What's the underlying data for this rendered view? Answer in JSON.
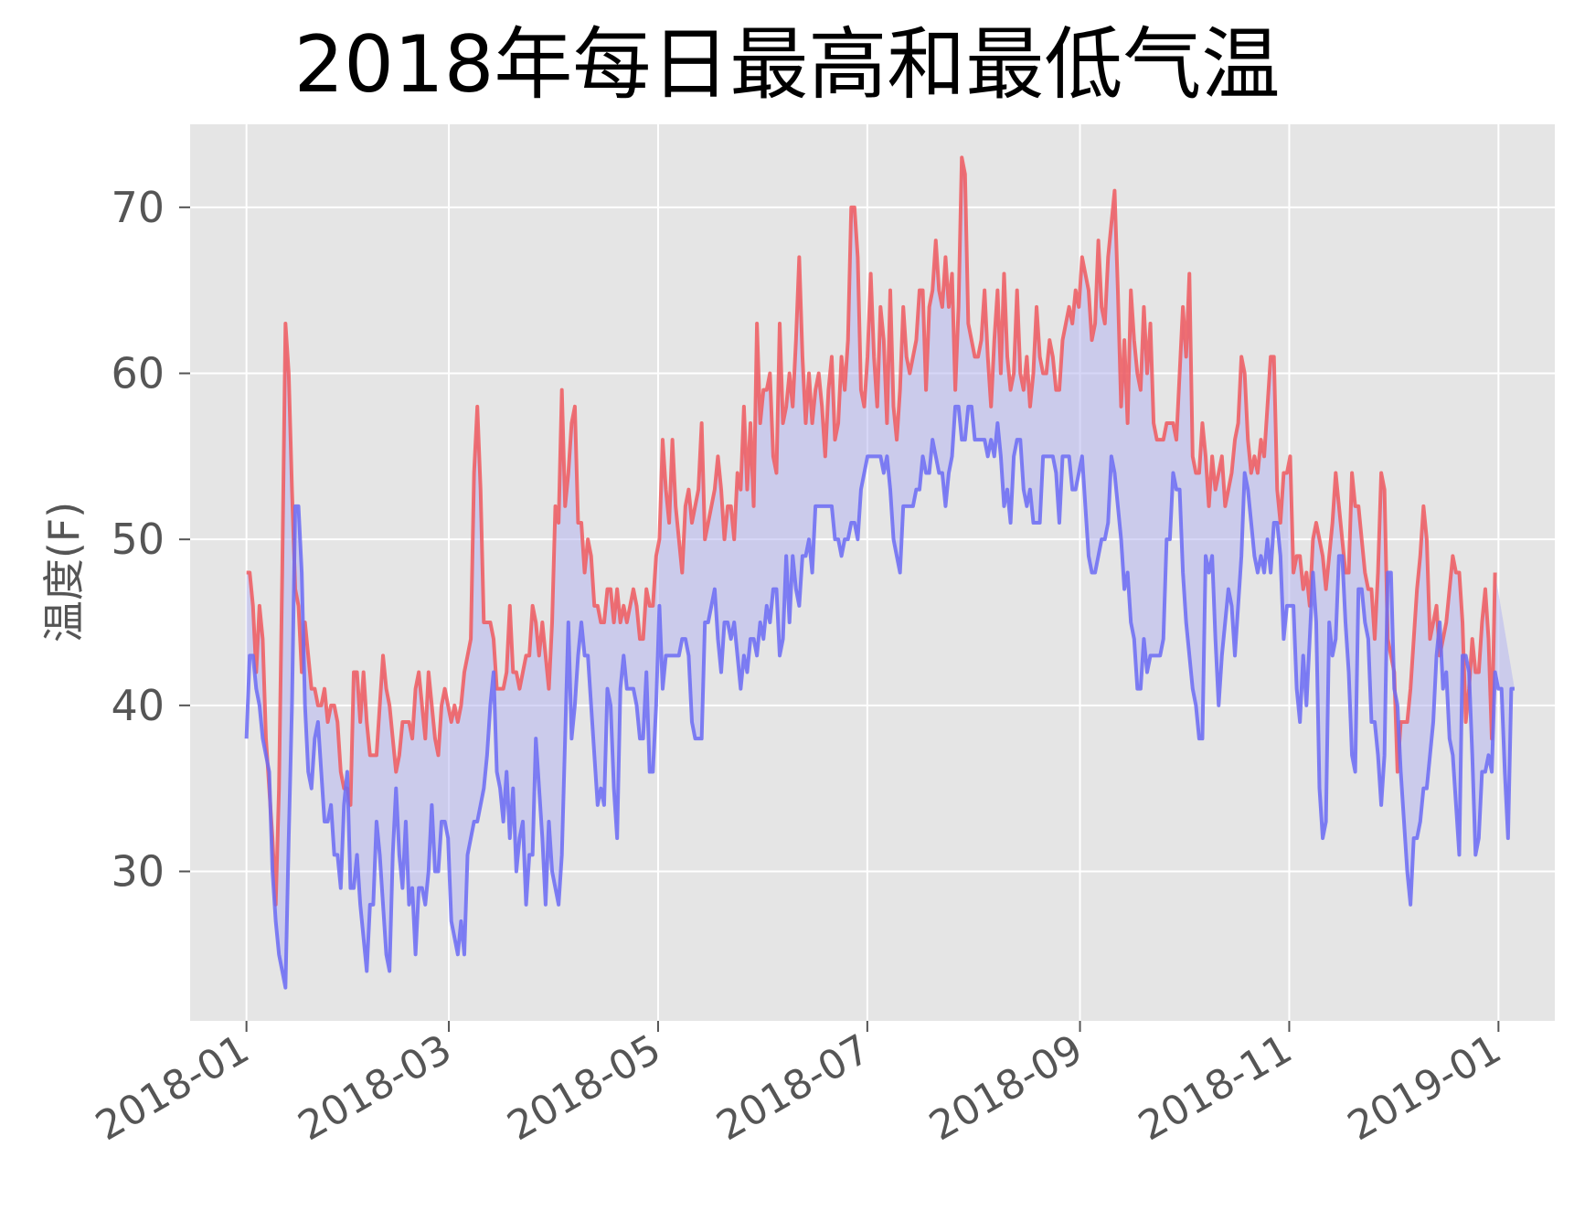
{
  "chart_data": {
    "type": "line",
    "title": "2018年每日最高和最低气温",
    "xlabel": "",
    "ylabel": "温度(F)",
    "grid": true,
    "background": "#e5e5e5",
    "x_range": [
      "2018-01-01",
      "2019-01-01"
    ],
    "ylim": [
      21,
      75
    ],
    "xticks": [
      "2018-01",
      "2018-03",
      "2018-05",
      "2018-07",
      "2018-09",
      "2018-11",
      "2019-01"
    ],
    "yticks": [
      30,
      40,
      50,
      60,
      70
    ],
    "x_start": "2018-01-01",
    "x_end": "2018-12-31",
    "series": [
      {
        "role": "high",
        "color": "#f0595e",
        "opacity": 0.85,
        "values": [
          48,
          48,
          46,
          42,
          46,
          44,
          38,
          35,
          32,
          28,
          35,
          48,
          63,
          60,
          53,
          47,
          46,
          42,
          45,
          43,
          41,
          41,
          40,
          40,
          41,
          39,
          40,
          40,
          39,
          36,
          35,
          35,
          34,
          42,
          42,
          39,
          42,
          39,
          37,
          37,
          37,
          40,
          43,
          41,
          40,
          38,
          36,
          37,
          39,
          39,
          39,
          38,
          41,
          42,
          40,
          38,
          42,
          40,
          38,
          37,
          40,
          41,
          40,
          39,
          40,
          39,
          40,
          42,
          43,
          44,
          54,
          58,
          53,
          45,
          45,
          45,
          44,
          41,
          41,
          41,
          42,
          46,
          42,
          42,
          41,
          42,
          43,
          43,
          46,
          45,
          43,
          45,
          43,
          41,
          45,
          52,
          51,
          59,
          52,
          54,
          57,
          58,
          51,
          51,
          48,
          50,
          49,
          46,
          46,
          45,
          45,
          47,
          47,
          45,
          47,
          45,
          46,
          45,
          46,
          47,
          46,
          44,
          44,
          47,
          46,
          46,
          49,
          50,
          56,
          53,
          51,
          56,
          52,
          50,
          48,
          52,
          53,
          51,
          52,
          53,
          57,
          50,
          51,
          52,
          53,
          55,
          53,
          50,
          52,
          52,
          50,
          54,
          53,
          58,
          53,
          57,
          52,
          63,
          57,
          59,
          59,
          60,
          55,
          54,
          63,
          57,
          58,
          60,
          58,
          62,
          67,
          61,
          57,
          60,
          57,
          59,
          60,
          58,
          55,
          59,
          61,
          56,
          57,
          61,
          59,
          62,
          70,
          70,
          67,
          59,
          58,
          61,
          66,
          61,
          58,
          64,
          62,
          57,
          65,
          58,
          56,
          59,
          64,
          61,
          60,
          61,
          62,
          65,
          65,
          59,
          64,
          65,
          68,
          65,
          64,
          67,
          64,
          66,
          59,
          64,
          73,
          72,
          63,
          62,
          61,
          61,
          62,
          65,
          61,
          58,
          62,
          65,
          60,
          66,
          61,
          59,
          60,
          65,
          60,
          59,
          61,
          58,
          60,
          64,
          61,
          60,
          60,
          62,
          61,
          59,
          59,
          62,
          63,
          64,
          63,
          65,
          64,
          67,
          66,
          65,
          62,
          63,
          68,
          64,
          63,
          67,
          69,
          71,
          65,
          58,
          62,
          57,
          65,
          62,
          60,
          59,
          64,
          60,
          63,
          57,
          56,
          56,
          56,
          57,
          57,
          57,
          56,
          60,
          64,
          61,
          66,
          55,
          54,
          54,
          57,
          55,
          52,
          55,
          53,
          54,
          55,
          52,
          53,
          54,
          56,
          57,
          61,
          60,
          56,
          54,
          55,
          54,
          56,
          55,
          58,
          61,
          61,
          53,
          51,
          54,
          54,
          55,
          48,
          49,
          49,
          47,
          48,
          46,
          50,
          51,
          50,
          49,
          47,
          49,
          51,
          54,
          52,
          50,
          48,
          48,
          54,
          52,
          52,
          50,
          48,
          47,
          47,
          44,
          48,
          54,
          53,
          44,
          43,
          42,
          36,
          39,
          39,
          39,
          41,
          44,
          47,
          49,
          52,
          50,
          44,
          45,
          46,
          43,
          44,
          45,
          47,
          49,
          48,
          48,
          45,
          39,
          41,
          44,
          42,
          42,
          45,
          47,
          44,
          38,
          48
        ]
      },
      {
        "role": "low",
        "color": "#6b6bf5",
        "opacity": 0.85,
        "values": [
          38,
          43,
          43,
          41,
          40,
          38,
          37,
          36,
          30,
          27,
          25,
          24,
          23,
          32,
          40,
          52,
          52,
          48,
          40,
          36,
          35,
          38,
          39,
          36,
          33,
          33,
          34,
          31,
          31,
          29,
          34,
          36,
          29,
          29,
          31,
          28,
          26,
          24,
          28,
          28,
          33,
          31,
          28,
          25,
          24,
          31,
          35,
          31,
          29,
          33,
          28,
          29,
          25,
          29,
          29,
          28,
          30,
          34,
          30,
          30,
          33,
          33,
          32,
          27,
          26,
          25,
          27,
          25,
          31,
          32,
          33,
          33,
          34,
          35,
          37,
          40,
          42,
          36,
          35,
          33,
          36,
          32,
          35,
          30,
          32,
          33,
          28,
          31,
          31,
          38,
          35,
          32,
          28,
          33,
          30,
          29,
          28,
          31,
          38,
          45,
          38,
          40,
          43,
          45,
          43,
          43,
          40,
          37,
          34,
          35,
          34,
          41,
          40,
          35,
          32,
          41,
          43,
          41,
          41,
          41,
          40,
          38,
          38,
          42,
          36,
          36,
          40,
          46,
          41,
          43,
          43,
          43,
          43,
          43,
          44,
          44,
          43,
          39,
          38,
          38,
          38,
          45,
          45,
          46,
          47,
          44,
          42,
          45,
          45,
          44,
          45,
          43,
          41,
          43,
          42,
          44,
          44,
          43,
          45,
          44,
          46,
          45,
          47,
          47,
          43,
          44,
          49,
          45,
          49,
          47,
          46,
          49,
          49,
          50,
          48,
          52,
          52,
          52,
          52,
          52,
          52,
          50,
          50,
          49,
          50,
          50,
          51,
          51,
          50,
          53,
          54,
          55,
          55,
          55,
          55,
          55,
          54,
          55,
          53,
          50,
          49,
          48,
          52,
          52,
          52,
          52,
          53,
          53,
          55,
          54,
          54,
          56,
          55,
          54,
          54,
          52,
          54,
          55,
          58,
          58,
          56,
          56,
          58,
          58,
          56,
          56,
          56,
          56,
          55,
          56,
          55,
          57,
          55,
          52,
          53,
          51,
          55,
          56,
          56,
          53,
          52,
          53,
          51,
          51,
          51,
          55,
          55,
          55,
          55,
          54,
          51,
          55,
          55,
          55,
          53,
          53,
          54,
          55,
          52,
          49,
          48,
          48,
          49,
          50,
          50,
          51,
          55,
          54,
          52,
          50,
          47,
          48,
          45,
          44,
          41,
          41,
          44,
          42,
          43,
          43,
          43,
          43,
          44,
          50,
          50,
          54,
          53,
          53,
          48,
          45,
          43,
          41,
          40,
          38,
          38,
          49,
          48,
          49,
          44,
          40,
          43,
          45,
          47,
          46,
          43,
          46,
          49,
          54,
          53,
          51,
          49,
          48,
          49,
          48,
          50,
          48,
          51,
          51,
          49,
          44,
          46,
          46,
          46,
          41,
          39,
          43,
          40,
          44,
          48,
          45,
          35,
          32,
          33,
          45,
          43,
          44,
          49,
          49,
          45,
          42,
          37,
          36,
          47,
          47,
          45,
          44,
          39,
          39,
          37,
          34,
          37,
          48,
          48,
          41,
          40,
          36,
          33,
          30,
          28,
          32,
          32,
          33,
          35,
          35,
          37,
          39,
          43,
          45,
          41,
          42,
          38,
          37,
          34,
          31,
          43,
          43,
          42,
          37,
          31,
          32,
          36,
          36,
          37,
          36,
          42,
          41,
          41,
          36,
          32,
          41,
          41
        ]
      }
    ]
  }
}
